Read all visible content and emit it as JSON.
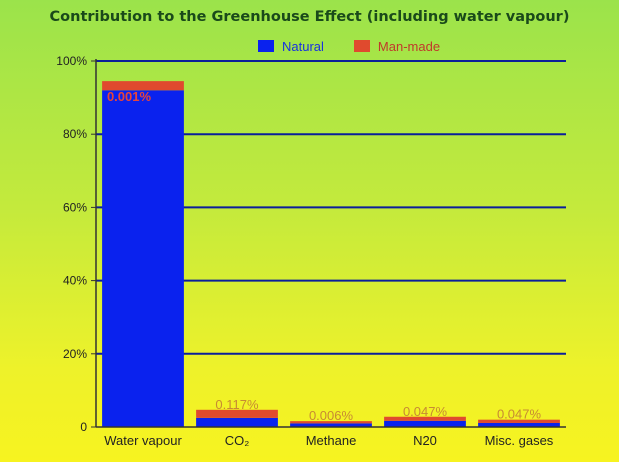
{
  "chart_data": {
    "type": "bar",
    "stacked": true,
    "title": "Contribution to the Greenhouse Effect (including water vapour)",
    "xlabel": "",
    "ylabel": "",
    "ylim": [
      0,
      100
    ],
    "yticks": [
      "0",
      "20%",
      "40%",
      "60%",
      "80%",
      "100%"
    ],
    "ytick_values": [
      0,
      20,
      40,
      60,
      80,
      100
    ],
    "grid": true,
    "legend": "top-center",
    "categories": [
      "Water vapour",
      "CO₂",
      "Methane",
      "N20",
      "Misc. gases"
    ],
    "series": [
      {
        "name": "Natural",
        "color": "#0a22ee",
        "values": [
          92.0,
          2.5,
          1.0,
          1.7,
          1.1
        ]
      },
      {
        "name": "Man-made",
        "color": "#e04a2e",
        "values": [
          2.5,
          2.2,
          0.6,
          1.1,
          0.9
        ]
      }
    ],
    "data_labels": [
      "0.001%",
      "0.117%",
      "0.006%",
      "0.047%",
      "0.047%"
    ]
  }
}
